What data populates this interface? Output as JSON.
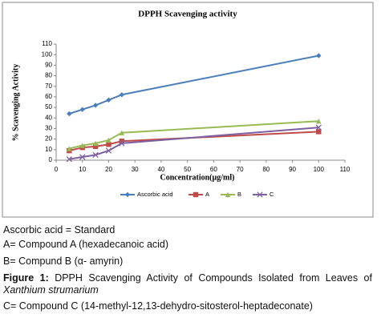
{
  "chart_data": {
    "type": "line",
    "title": "DPPH Scavenging activity",
    "x_label": "Concentration(µg/ml)",
    "y_label": "% Scavenging Activity",
    "x": [
      5,
      10,
      15,
      20,
      25,
      100
    ],
    "series": [
      {
        "name": "Ascorbic acid",
        "color": "#4a7ebb",
        "marker": "diamond",
        "values": [
          44,
          48,
          52,
          57,
          62,
          99
        ]
      },
      {
        "name": "A",
        "color": "#be4b48",
        "marker": "square",
        "values": [
          9,
          12,
          13,
          15,
          18,
          27
        ]
      },
      {
        "name": "B",
        "color": "#98b954",
        "marker": "triangle",
        "values": [
          11,
          14,
          16,
          19,
          26,
          37
        ]
      },
      {
        "name": "C",
        "color": "#7d60a0",
        "marker": "cross",
        "values": [
          1,
          3,
          5,
          9,
          16,
          31
        ]
      }
    ],
    "xlim": [
      0,
      110
    ],
    "xticks": [
      0,
      10,
      20,
      30,
      40,
      50,
      60,
      70,
      80,
      90,
      100,
      110
    ],
    "ylim": [
      0,
      110
    ],
    "yticks": [
      0,
      10,
      20,
      30,
      40,
      50,
      60,
      70,
      80,
      90,
      100,
      110
    ],
    "grid": false,
    "legend": "bottom"
  },
  "caption": {
    "standard": "Ascorbic acid = Standard",
    "compound_a": "A= Compound A (hexadecanoic acid)",
    "compound_b": "B= Compund B (α- amyrin)",
    "figure_label": "Figure 1:",
    "figure_text": "DPPH Scavenging Activity of Compounds Isolated from Leaves of",
    "species": "Xanthium strumarium",
    "compound_c": "C= Compound C (14-methyl-12,13-dehydro-sitosterol-heptadeconate)"
  }
}
